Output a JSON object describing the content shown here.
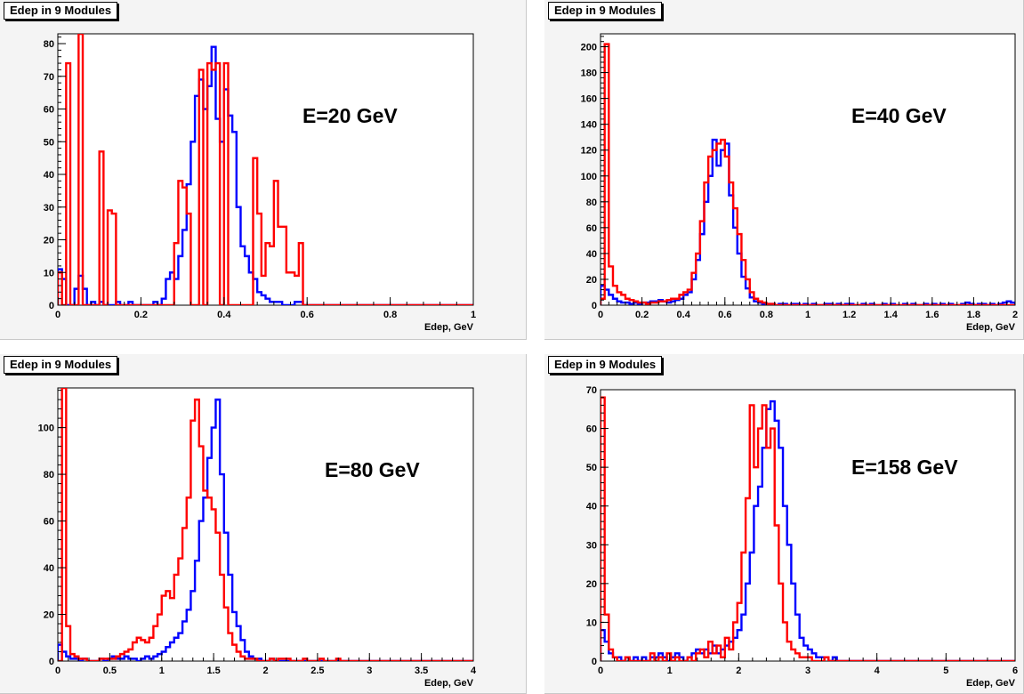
{
  "chart_data": [
    {
      "type": "line",
      "title": "Edep in 9 Modules",
      "annotation": "E=20 GeV",
      "xlabel": "Edep, GeV",
      "ylabel": "",
      "xlim": [
        0,
        1
      ],
      "ylim": [
        0,
        83
      ],
      "xticks": [
        0,
        0.2,
        0.4,
        0.6,
        0.8,
        1
      ],
      "xtick_labels": [
        "0",
        "0.2",
        "0.4",
        "0.6",
        "0.8",
        "1"
      ],
      "yticks": [
        0,
        10,
        20,
        30,
        40,
        50,
        60,
        70,
        80
      ],
      "ytick_labels": [
        "0",
        "10",
        "20",
        "30",
        "40",
        "50",
        "60",
        "70",
        "80"
      ],
      "bin_width": 0.01,
      "series": [
        {
          "color": "#0000ff",
          "x0": 0.0,
          "values": [
            11,
            8,
            0,
            0,
            5,
            9,
            5,
            0,
            1,
            0,
            1,
            0,
            0,
            0,
            1,
            0,
            0,
            1,
            0,
            0,
            0,
            0,
            0,
            1,
            0,
            2,
            8,
            10,
            8,
            15,
            23,
            37,
            50,
            64,
            69,
            60,
            67,
            79,
            57,
            50,
            66,
            58,
            53,
            30,
            18,
            15,
            10,
            8,
            4,
            3,
            2,
            1,
            1,
            1,
            0,
            0,
            0,
            1,
            1,
            0
          ]
        },
        {
          "color": "#ff0000",
          "x0": 0.0,
          "values": [
            10,
            0,
            74,
            0,
            0,
            83,
            0,
            0,
            0,
            0,
            47,
            0,
            29,
            28,
            0,
            0,
            0,
            0,
            0,
            0,
            0,
            0,
            0,
            0,
            0,
            0,
            0,
            0,
            19,
            38,
            36,
            28,
            0,
            0,
            72,
            0,
            74,
            72,
            74,
            0,
            74,
            0,
            0,
            0,
            0,
            0,
            0,
            45,
            28,
            9,
            19,
            18,
            38,
            24,
            24,
            10,
            10,
            9,
            19,
            0,
            0,
            0,
            0,
            0,
            0,
            0,
            0,
            0,
            0,
            0,
            0,
            0,
            0,
            0,
            0,
            0,
            0,
            0,
            0,
            0,
            0,
            0,
            0,
            0,
            0,
            0,
            0,
            0,
            0,
            0,
            0,
            0,
            0,
            0,
            0,
            0,
            0,
            0,
            0,
            0
          ]
        }
      ]
    },
    {
      "type": "line",
      "title": "Edep in 9 Modules",
      "annotation": "E=40 GeV",
      "xlabel": "Edep, GeV",
      "ylabel": "",
      "xlim": [
        0,
        2
      ],
      "ylim": [
        0,
        210
      ],
      "xticks": [
        0,
        0.2,
        0.4,
        0.6,
        0.8,
        1,
        1.2,
        1.4,
        1.6,
        1.8,
        2
      ],
      "xtick_labels": [
        "0",
        "0.2",
        "0.4",
        "0.6",
        "0.8",
        "1",
        "1.2",
        "1.4",
        "1.6",
        "1.8",
        "2"
      ],
      "yticks": [
        0,
        20,
        40,
        60,
        80,
        100,
        120,
        140,
        160,
        180,
        200
      ],
      "ytick_labels": [
        "0",
        "20",
        "40",
        "60",
        "80",
        "100",
        "120",
        "140",
        "160",
        "180",
        "200"
      ],
      "bin_width": 0.02,
      "series": [
        {
          "color": "#0000ff",
          "x0": 0.0,
          "values": [
            15,
            12,
            8,
            5,
            3,
            2,
            2,
            1,
            2,
            1,
            2,
            2,
            3,
            3,
            4,
            3,
            2,
            3,
            4,
            5,
            8,
            10,
            20,
            35,
            55,
            80,
            100,
            128,
            108,
            120,
            125,
            85,
            60,
            40,
            22,
            13,
            6,
            3,
            2,
            1,
            1,
            1,
            0,
            1,
            1,
            0,
            1,
            1,
            0,
            1,
            0,
            1,
            0,
            0,
            1,
            1,
            0,
            1,
            0,
            1,
            1,
            0,
            0,
            1,
            0,
            1,
            0,
            0,
            1,
            0,
            1,
            0,
            0,
            1,
            0,
            1,
            0,
            0,
            1,
            0,
            1,
            0,
            1,
            0,
            1,
            0,
            0,
            1,
            2,
            1,
            0,
            1,
            1,
            0,
            1,
            0,
            1,
            2,
            3,
            2
          ]
        },
        {
          "color": "#ff0000",
          "x0": 0.0,
          "values": [
            5,
            202,
            30,
            15,
            10,
            8,
            5,
            4,
            3,
            2,
            2,
            1,
            2,
            2,
            3,
            3,
            4,
            5,
            5,
            8,
            10,
            12,
            25,
            40,
            65,
            95,
            115,
            120,
            125,
            128,
            115,
            95,
            75,
            55,
            35,
            20,
            10,
            5,
            3,
            2,
            1,
            1,
            0,
            0,
            0,
            0,
            0,
            0,
            0,
            0,
            0,
            0,
            0,
            0,
            0,
            0,
            0,
            0,
            0,
            0,
            0,
            0,
            0,
            0,
            0,
            0,
            0,
            0,
            0,
            0,
            0,
            0,
            0,
            0,
            0,
            0,
            0,
            0,
            0,
            0,
            0,
            0,
            0,
            0,
            0,
            0,
            0,
            0,
            0,
            0,
            0,
            0,
            0,
            0,
            0,
            0,
            0,
            0,
            0,
            0
          ]
        }
      ]
    },
    {
      "type": "line",
      "title": "Edep in 9 Modules",
      "annotation": "E=80 GeV",
      "xlabel": "Edep, GeV",
      "ylabel": "",
      "xlim": [
        0,
        4
      ],
      "ylim": [
        0,
        117
      ],
      "xticks": [
        0,
        0.5,
        1,
        1.5,
        2,
        2.5,
        3,
        3.5,
        4
      ],
      "xtick_labels": [
        "0",
        "0.5",
        "1",
        "1.5",
        "2",
        "2.5",
        "3",
        "3.5",
        "4"
      ],
      "yticks": [
        0,
        20,
        40,
        60,
        80,
        100
      ],
      "ytick_labels": [
        "0",
        "20",
        "40",
        "60",
        "80",
        "100"
      ],
      "bin_width": 0.04,
      "series": [
        {
          "color": "#0000ff",
          "x0": 0.0,
          "values": [
            7,
            4,
            2,
            1,
            1,
            0,
            1,
            0,
            0,
            0,
            1,
            0,
            1,
            2,
            1,
            1,
            2,
            1,
            1,
            0,
            1,
            2,
            1,
            2,
            3,
            4,
            6,
            8,
            10,
            12,
            17,
            22,
            30,
            43,
            60,
            70,
            87,
            100,
            112,
            80,
            55,
            37,
            21,
            15,
            9,
            4,
            2,
            1,
            1,
            0,
            0,
            1,
            0,
            0,
            0,
            0,
            0,
            0,
            0,
            0,
            0,
            0,
            0,
            0,
            0,
            0,
            0,
            0,
            0,
            0,
            0,
            0,
            0,
            0,
            0,
            0,
            0,
            0,
            0,
            0,
            0,
            0,
            0,
            0,
            0,
            0,
            0,
            0,
            0,
            0,
            0,
            0,
            0,
            0,
            0,
            0,
            0,
            0,
            0,
            0
          ]
        },
        {
          "color": "#ff0000",
          "x0": 0.0,
          "values": [
            0,
            117,
            15,
            3,
            2,
            1,
            1,
            0,
            0,
            0,
            1,
            1,
            1,
            1,
            2,
            3,
            4,
            5,
            8,
            10,
            9,
            8,
            10,
            15,
            20,
            28,
            30,
            27,
            37,
            44,
            57,
            70,
            103,
            112,
            92,
            73,
            70,
            65,
            55,
            37,
            23,
            12,
            7,
            4,
            2,
            1,
            1,
            1,
            0,
            0,
            0,
            1,
            0,
            1,
            1,
            1,
            0,
            0,
            0,
            1,
            0,
            0,
            0,
            1,
            0,
            0,
            0,
            1,
            0,
            0,
            0,
            0,
            0,
            0,
            0,
            0,
            0,
            0,
            0,
            0,
            0,
            0,
            0,
            0,
            0,
            0,
            0,
            0,
            0,
            0,
            0,
            0,
            0,
            0,
            0,
            0,
            0,
            0,
            0,
            0
          ]
        }
      ]
    },
    {
      "type": "line",
      "title": "Edep in 9 Modules",
      "annotation": "E=158 GeV",
      "xlabel": "Edep, GeV",
      "ylabel": "",
      "xlim": [
        0,
        6
      ],
      "ylim": [
        0,
        70
      ],
      "xticks": [
        0,
        1,
        2,
        3,
        4,
        5,
        6
      ],
      "xtick_labels": [
        "0",
        "1",
        "2",
        "3",
        "4",
        "5",
        "6"
      ],
      "yticks": [
        0,
        10,
        20,
        30,
        40,
        50,
        60,
        70
      ],
      "ytick_labels": [
        "0",
        "10",
        "20",
        "30",
        "40",
        "50",
        "60",
        "70"
      ],
      "bin_width": 0.06,
      "series": [
        {
          "color": "#0000ff",
          "x0": 0.0,
          "values": [
            8,
            5,
            2,
            1,
            1,
            0,
            1,
            0,
            1,
            0,
            1,
            0,
            1,
            1,
            2,
            1,
            0,
            1,
            2,
            1,
            0,
            1,
            2,
            3,
            2,
            3,
            2,
            4,
            2,
            3,
            4,
            5,
            6,
            8,
            12,
            20,
            28,
            40,
            45,
            55,
            65,
            67,
            62,
            55,
            40,
            30,
            20,
            12,
            6,
            4,
            3,
            2,
            1,
            1,
            1,
            0,
            1,
            0,
            0,
            0,
            0,
            0,
            0,
            0,
            0,
            0,
            0,
            0,
            0,
            0,
            0,
            0,
            0,
            0,
            0,
            0,
            0,
            0,
            0,
            0,
            0,
            0,
            0,
            0,
            0,
            0,
            0,
            0,
            0,
            0,
            0,
            0,
            0,
            0,
            0,
            0,
            0,
            0,
            0,
            0
          ]
        },
        {
          "color": "#ff0000",
          "x0": 0.0,
          "values": [
            68,
            12,
            3,
            1,
            0,
            0,
            1,
            0,
            0,
            0,
            0,
            0,
            2,
            0,
            1,
            0,
            2,
            0,
            1,
            0,
            0,
            1,
            0,
            2,
            3,
            1,
            5,
            2,
            4,
            1,
            6,
            3,
            10,
            15,
            28,
            42,
            66,
            50,
            60,
            66,
            55,
            60,
            35,
            20,
            10,
            5,
            3,
            2,
            1,
            1,
            1,
            0,
            0,
            0,
            1,
            0,
            0,
            0,
            0,
            0,
            0,
            0,
            0,
            0,
            0,
            0,
            0,
            0,
            0,
            0,
            0,
            0,
            0,
            0,
            0,
            0,
            0,
            0,
            0,
            0,
            0,
            0,
            0,
            0,
            0,
            0,
            0,
            0,
            0,
            0,
            0,
            0,
            0,
            0,
            0,
            0,
            0,
            0,
            0,
            0
          ]
        }
      ]
    }
  ]
}
